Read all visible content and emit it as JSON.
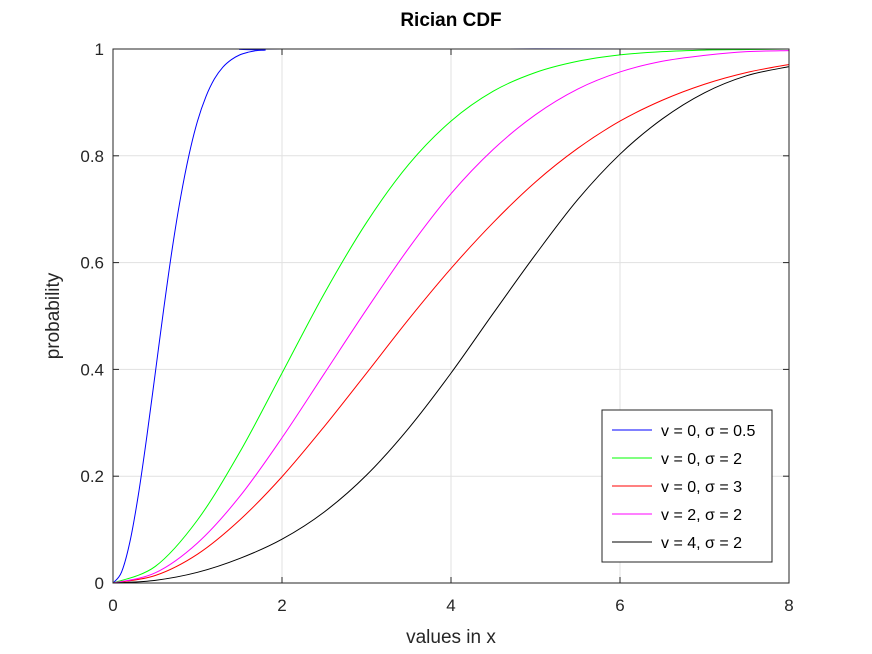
{
  "chart_data": {
    "type": "line",
    "title": "Rician CDF",
    "xlabel": "values in x",
    "ylabel": "probability",
    "xlim": [
      0,
      8
    ],
    "ylim": [
      0,
      1
    ],
    "x_ticks": [
      "0",
      "2",
      "4",
      "6",
      "8"
    ],
    "y_ticks": [
      "0",
      "0.2",
      "0.4",
      "0.6",
      "0.8",
      "1"
    ],
    "grid": true,
    "legend_position": "bottom-right",
    "series": [
      {
        "name": "v = 0, σ = 0.5",
        "color": "#0000ff",
        "x": [
          0,
          0.1,
          0.2,
          0.3,
          0.4,
          0.5,
          0.6,
          0.7,
          0.8,
          0.9,
          1.0,
          1.1,
          1.2,
          1.3,
          1.4,
          1.5,
          1.6,
          1.7,
          1.8,
          2.0,
          8.0
        ],
        "y": [
          0,
          0.02,
          0.077,
          0.165,
          0.274,
          0.393,
          0.513,
          0.625,
          0.722,
          0.802,
          0.865,
          0.911,
          0.944,
          0.966,
          0.98,
          0.989,
          0.994,
          0.997,
          0.998,
          1.0,
          1.0
        ]
      },
      {
        "name": "v = 0, σ = 2",
        "color": "#00ff00",
        "x": [
          0,
          0.5,
          1.0,
          1.5,
          2.0,
          2.5,
          3.0,
          3.5,
          4.0,
          4.5,
          5.0,
          5.5,
          6.0,
          6.5,
          7.0,
          7.5,
          8.0
        ],
        "y": [
          0,
          0.031,
          0.118,
          0.245,
          0.393,
          0.542,
          0.675,
          0.784,
          0.865,
          0.921,
          0.956,
          0.977,
          0.989,
          0.995,
          0.998,
          0.999,
          1.0
        ]
      },
      {
        "name": "v = 0, σ = 3",
        "color": "#ff0000",
        "x": [
          0,
          0.5,
          1.0,
          1.5,
          2.0,
          2.5,
          3.0,
          3.5,
          4.0,
          4.5,
          5.0,
          5.5,
          6.0,
          6.5,
          7.0,
          7.5,
          8.0
        ],
        "y": [
          0,
          0.014,
          0.054,
          0.118,
          0.199,
          0.293,
          0.393,
          0.494,
          0.589,
          0.675,
          0.751,
          0.814,
          0.865,
          0.904,
          0.934,
          0.956,
          0.971
        ]
      },
      {
        "name": "v = 2, σ = 2",
        "color": "#ff00ff",
        "x": [
          0,
          0.5,
          1.0,
          1.5,
          2.0,
          2.5,
          3.0,
          3.5,
          4.0,
          4.5,
          5.0,
          5.5,
          6.0,
          6.5,
          7.0,
          7.5,
          8.0
        ],
        "y": [
          0,
          0.019,
          0.075,
          0.162,
          0.272,
          0.392,
          0.512,
          0.627,
          0.729,
          0.812,
          0.877,
          0.925,
          0.957,
          0.977,
          0.988,
          0.995,
          0.997
        ]
      },
      {
        "name": "v = 4, σ = 2",
        "color": "#000000",
        "x": [
          0,
          0.5,
          1.0,
          1.5,
          2.0,
          2.5,
          3.0,
          3.5,
          4.0,
          4.5,
          5.0,
          5.5,
          6.0,
          6.5,
          7.0,
          7.5,
          8.0
        ],
        "y": [
          0,
          0.005,
          0.02,
          0.046,
          0.082,
          0.133,
          0.202,
          0.29,
          0.393,
          0.505,
          0.615,
          0.718,
          0.803,
          0.869,
          0.918,
          0.95,
          0.967
        ]
      }
    ]
  }
}
